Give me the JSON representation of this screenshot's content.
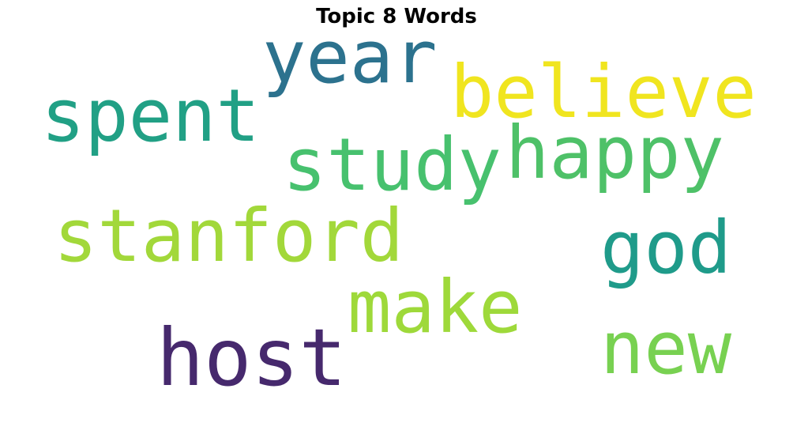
{
  "chart_data": {
    "type": "wordcloud",
    "title": "Topic 8 Words",
    "words": [
      {
        "text": "year",
        "color": "#2c728e"
      },
      {
        "text": "believe",
        "color": "#f0e51f"
      },
      {
        "text": "spent",
        "color": "#21a085"
      },
      {
        "text": "study",
        "color": "#47c16e"
      },
      {
        "text": "happy",
        "color": "#4ec168"
      },
      {
        "text": "stanford",
        "color": "#a2d83a"
      },
      {
        "text": "god",
        "color": "#1f9b8a"
      },
      {
        "text": "make",
        "color": "#9ed93a"
      },
      {
        "text": "new",
        "color": "#78d151"
      },
      {
        "text": "host",
        "color": "#46296d"
      }
    ]
  }
}
